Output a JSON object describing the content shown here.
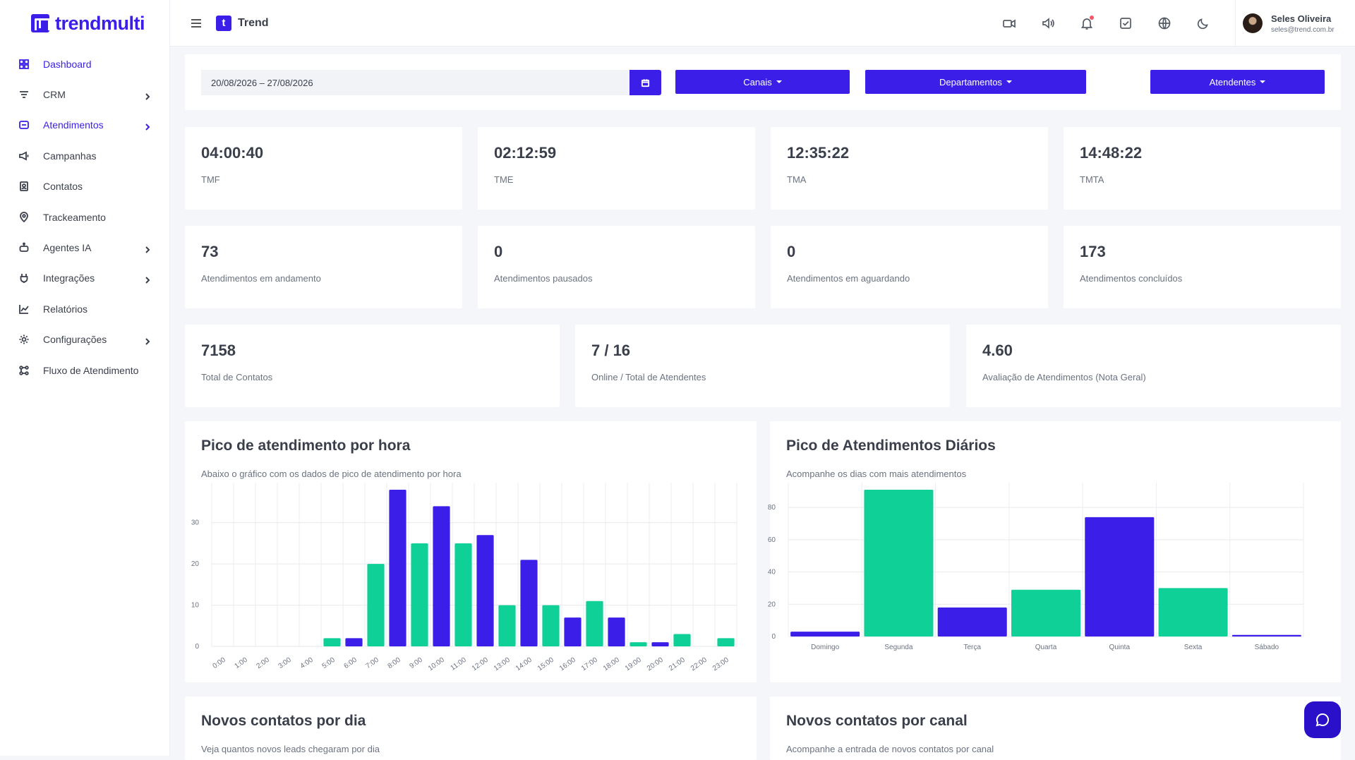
{
  "sidebar": {
    "logo": "trendmulti",
    "items": [
      {
        "label": "Dashboard",
        "icon": "grid-icon",
        "chevron": false,
        "active": true
      },
      {
        "label": "CRM",
        "icon": "filter-icon",
        "chevron": true,
        "active": false
      },
      {
        "label": "Atendimentos",
        "icon": "chat-icon",
        "chevron": true,
        "active": true
      },
      {
        "label": "Campanhas",
        "icon": "megaphone-icon",
        "chevron": false,
        "active": false
      },
      {
        "label": "Contatos",
        "icon": "contact-book-icon",
        "chevron": false,
        "active": false
      },
      {
        "label": "Trackeamento",
        "icon": "location-pin-icon",
        "chevron": false,
        "active": false
      },
      {
        "label": "Agentes IA",
        "icon": "robot-icon",
        "chevron": true,
        "active": false
      },
      {
        "label": "Integrações",
        "icon": "plug-icon",
        "chevron": true,
        "active": false
      },
      {
        "label": "Relatórios",
        "icon": "line-chart-icon",
        "chevron": false,
        "active": false
      },
      {
        "label": "Configurações",
        "icon": "gear-icon",
        "chevron": true,
        "active": false
      },
      {
        "label": "Fluxo de Atendimento",
        "icon": "flow-icon",
        "chevron": false,
        "active": false
      }
    ]
  },
  "topbar": {
    "brand_letter": "t",
    "brand_name": "Trend",
    "icons": [
      "video-icon",
      "speaker-icon",
      "bell-icon",
      "checkbox-icon",
      "globe-icon",
      "moon-icon"
    ],
    "user_name": "Seles Oliveira",
    "user_email": "seles@trend.com.br"
  },
  "filters": {
    "date_range": "20/08/2026 – 27/08/2026",
    "canais": "Canais",
    "departamentos": "Departamentos",
    "atendentes": "Atendentes"
  },
  "stats_row1": [
    {
      "value": "04:00:40",
      "label": "TMF"
    },
    {
      "value": "02:12:59",
      "label": "TME"
    },
    {
      "value": "12:35:22",
      "label": "TMA"
    },
    {
      "value": "14:48:22",
      "label": "TMTA"
    }
  ],
  "stats_row2": [
    {
      "value": "73",
      "label": "Atendimentos em andamento"
    },
    {
      "value": "0",
      "label": "Atendimentos pausados"
    },
    {
      "value": "0",
      "label": "Atendimentos em aguardando"
    },
    {
      "value": "173",
      "label": "Atendimentos concluídos"
    }
  ],
  "stats_row3": [
    {
      "value": "7158",
      "label": "Total de Contatos"
    },
    {
      "value": "7 / 16",
      "label": "Online / Total de Atendentes"
    },
    {
      "value": "4.60",
      "label": "Avaliação de Atendimentos (Nota Geral)"
    }
  ],
  "colors": {
    "primary": "#3b1ee8",
    "secondary": "#0fd197"
  },
  "chart_data": [
    {
      "type": "bar",
      "title": "Pico de atendimento por hora",
      "subtitle": "Abaixo o gráfico com os dados de pico de atendimento por hora",
      "categories": [
        "0:00",
        "1:00",
        "2:00",
        "3:00",
        "4:00",
        "5:00",
        "6:00",
        "7:00",
        "8:00",
        "9:00",
        "10:00",
        "11:00",
        "12:00",
        "13:00",
        "14:00",
        "15:00",
        "16:00",
        "17:00",
        "18:00",
        "19:00",
        "20:00",
        "21:00",
        "22:00",
        "23:00"
      ],
      "values": [
        0,
        0,
        0,
        0,
        0,
        2,
        2,
        20,
        38,
        25,
        34,
        25,
        27,
        10,
        21,
        10,
        7,
        11,
        7,
        1,
        1,
        3,
        0,
        2
      ],
      "yticks": [
        0,
        10,
        20,
        30
      ],
      "ylim": [
        0,
        38
      ],
      "grid": true
    },
    {
      "type": "bar",
      "title": "Pico de Atendimentos Diários",
      "subtitle": "Acompanhe os dias com mais atendimentos",
      "categories": [
        "Domingo",
        "Segunda",
        "Terça",
        "Quarta",
        "Quinta",
        "Sexta",
        "Sábado"
      ],
      "values": [
        3,
        91,
        18,
        29,
        74,
        30,
        1
      ],
      "yticks": [
        0,
        20,
        40,
        60,
        80
      ],
      "ylim": [
        0,
        91
      ],
      "grid": true
    }
  ],
  "bottom_cards": [
    {
      "title": "Novos contatos por dia",
      "subtitle": "Veja quantos novos leads chegaram por dia"
    },
    {
      "title": "Novos contatos por canal",
      "subtitle": "Acompanhe a entrada de novos contatos por canal"
    }
  ],
  "fab_icon": "chat-bubble-icon"
}
